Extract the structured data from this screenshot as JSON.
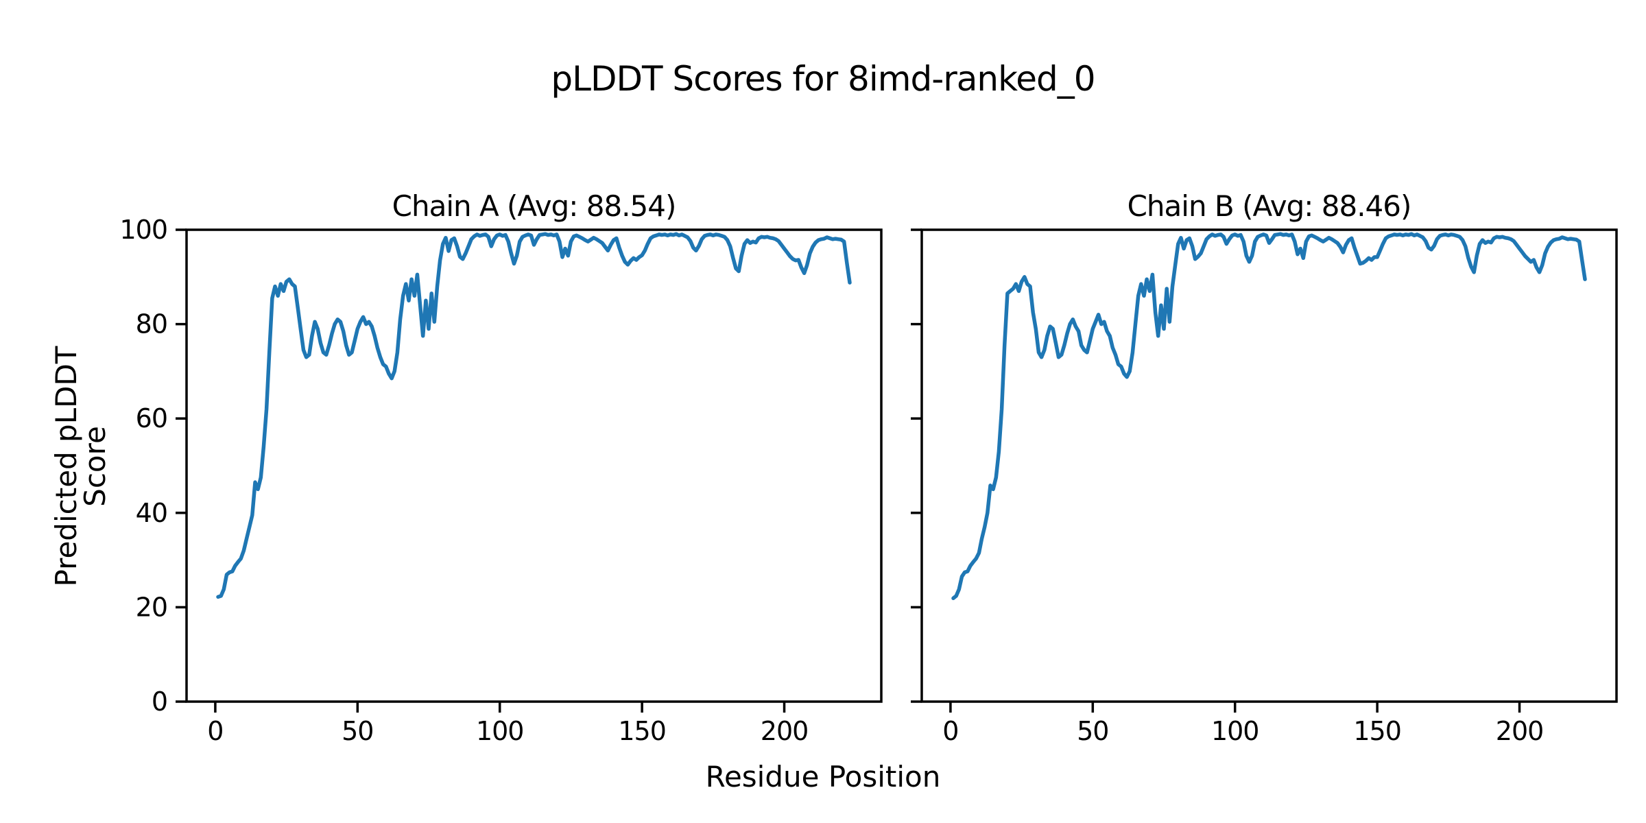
{
  "figure": {
    "suptitle": "pLDDT Scores for 8imd-ranked_0",
    "xlabel": "Residue Position",
    "ylabel": "Predicted pLDDT Score",
    "line_color": "#1f77b4",
    "axis_color": "#000000",
    "background": "#ffffff"
  },
  "chart_data": [
    {
      "type": "line",
      "title": "Chain A (Avg: 88.54)",
      "series_name": "Chain A pLDDT",
      "avg": 88.54,
      "x_start": 1,
      "xlabel": "Residue Position",
      "ylabel": "Predicted pLDDT Score",
      "xlim": [
        -10.1,
        234.1
      ],
      "ylim": [
        0,
        100
      ],
      "xticks": [
        0,
        50,
        100,
        150,
        200
      ],
      "yticks": [
        0,
        20,
        40,
        60,
        80,
        100
      ],
      "show_ytick_labels": true,
      "grid": false,
      "values": [
        22.2,
        22.4,
        23.8,
        26.9,
        27.4,
        27.6,
        28.8,
        29.6,
        30.3,
        32.0,
        34.5,
        37.0,
        39.5,
        46.5,
        45.0,
        47.5,
        54.0,
        62.0,
        74.0,
        85.5,
        88.0,
        86.0,
        88.5,
        87.0,
        89.0,
        89.5,
        88.5,
        88.0,
        83.5,
        79.0,
        74.5,
        73.0,
        73.5,
        77.5,
        80.5,
        79.0,
        76.0,
        74.0,
        73.5,
        75.5,
        78.0,
        80.0,
        81.0,
        80.5,
        78.5,
        75.5,
        73.5,
        74.0,
        76.5,
        79.0,
        80.5,
        81.5,
        80.0,
        80.5,
        79.5,
        77.5,
        75.0,
        73.0,
        71.5,
        71.0,
        69.5,
        68.5,
        70.0,
        74.0,
        81.0,
        86.0,
        88.5,
        85.0,
        89.5,
        86.0,
        90.5,
        84.0,
        77.5,
        85.0,
        79.0,
        86.5,
        80.5,
        88.0,
        93.5,
        97.0,
        98.3,
        95.5,
        97.8,
        98.2,
        96.5,
        94.3,
        93.8,
        95.0,
        96.5,
        98.0,
        98.6,
        99.0,
        98.7,
        98.9,
        99.0,
        98.5,
        96.5,
        98.0,
        98.8,
        99.0,
        98.7,
        98.9,
        97.5,
        95.0,
        92.8,
        94.5,
        97.5,
        98.5,
        98.8,
        99.0,
        98.8,
        96.8,
        98.0,
        98.9,
        99.0,
        99.1,
        98.9,
        99.0,
        98.8,
        99.0,
        97.5,
        94.2,
        96.0,
        94.5,
        97.5,
        98.6,
        98.8,
        98.5,
        98.2,
        97.8,
        97.5,
        97.9,
        98.3,
        98.0,
        97.6,
        97.2,
        96.4,
        95.6,
        96.8,
        97.8,
        98.2,
        96.2,
        94.5,
        93.2,
        92.6,
        93.4,
        94.0,
        93.6,
        94.2,
        94.6,
        95.6,
        97.0,
        98.2,
        98.6,
        98.8,
        99.0,
        98.9,
        99.0,
        98.8,
        99.0,
        98.9,
        99.1,
        98.8,
        99.0,
        98.7,
        98.4,
        97.6,
        96.2,
        95.6,
        96.6,
        98.0,
        98.7,
        98.9,
        99.0,
        98.8,
        99.0,
        98.9,
        98.7,
        98.5,
        97.8,
        96.5,
        94.0,
        91.8,
        91.2,
        94.5,
        97.0,
        97.8,
        97.2,
        97.5,
        97.3,
        98.2,
        98.5,
        98.4,
        98.5,
        98.3,
        98.2,
        98.0,
        97.6,
        96.8,
        96.0,
        95.2,
        94.4,
        93.8,
        93.5,
        93.6,
        92.0,
        90.8,
        92.5,
        95.0,
        96.4,
        97.3,
        97.8,
        98.0,
        98.1,
        98.4,
        98.2,
        98.0,
        98.1,
        98.0,
        97.9,
        97.5,
        93.0,
        88.8
      ]
    },
    {
      "type": "line",
      "title": "Chain B (Avg: 88.46)",
      "series_name": "Chain B pLDDT",
      "avg": 88.46,
      "x_start": 1,
      "xlabel": "Residue Position",
      "ylabel": "Predicted pLDDT Score",
      "xlim": [
        -10.1,
        234.1
      ],
      "ylim": [
        0,
        100
      ],
      "xticks": [
        0,
        50,
        100,
        150,
        200
      ],
      "yticks": [
        0,
        20,
        40,
        60,
        80,
        100
      ],
      "show_ytick_labels": false,
      "grid": false,
      "values": [
        21.9,
        22.4,
        23.8,
        26.5,
        27.4,
        27.6,
        28.8,
        29.6,
        30.3,
        31.5,
        34.5,
        37.0,
        40.0,
        45.8,
        45.0,
        47.5,
        53.0,
        62.0,
        75.5,
        86.5,
        87.0,
        87.5,
        88.5,
        87.0,
        89.0,
        90.0,
        88.5,
        88.0,
        82.5,
        79.0,
        74.0,
        73.0,
        74.5,
        77.5,
        79.5,
        79.0,
        76.0,
        73.0,
        73.5,
        75.5,
        78.0,
        80.0,
        81.0,
        79.5,
        78.5,
        75.5,
        74.5,
        74.0,
        76.5,
        79.0,
        80.5,
        82.0,
        80.0,
        80.5,
        78.5,
        77.5,
        75.0,
        73.5,
        71.5,
        71.0,
        69.5,
        68.8,
        70.0,
        74.0,
        80.0,
        86.0,
        88.5,
        86.0,
        89.5,
        87.0,
        90.5,
        82.5,
        77.5,
        84.0,
        79.0,
        87.5,
        80.5,
        88.0,
        92.5,
        97.0,
        98.3,
        96.0,
        97.8,
        98.2,
        96.5,
        93.8,
        94.3,
        95.0,
        96.5,
        98.0,
        98.6,
        99.0,
        98.7,
        98.9,
        99.0,
        98.5,
        97.0,
        98.0,
        98.8,
        99.0,
        98.7,
        98.9,
        97.5,
        94.5,
        93.2,
        94.5,
        97.5,
        98.5,
        98.8,
        99.0,
        98.8,
        97.2,
        98.0,
        98.9,
        99.0,
        99.1,
        98.9,
        99.0,
        98.8,
        99.0,
        97.5,
        94.8,
        96.0,
        94.0,
        97.5,
        98.6,
        98.8,
        98.5,
        98.2,
        97.8,
        97.5,
        97.9,
        98.3,
        98.0,
        97.6,
        97.2,
        96.4,
        95.2,
        96.8,
        97.8,
        98.2,
        96.2,
        94.5,
        92.8,
        93.0,
        93.4,
        94.0,
        93.6,
        94.2,
        94.2,
        95.6,
        97.0,
        98.2,
        98.6,
        98.8,
        99.0,
        98.9,
        99.0,
        98.8,
        99.0,
        98.9,
        99.1,
        98.8,
        99.0,
        98.7,
        98.4,
        97.6,
        96.2,
        95.8,
        96.6,
        98.0,
        98.7,
        98.9,
        99.0,
        98.8,
        99.0,
        98.9,
        98.7,
        98.5,
        97.8,
        96.5,
        94.0,
        92.2,
        91.0,
        94.5,
        97.0,
        97.8,
        97.2,
        97.5,
        97.3,
        98.2,
        98.5,
        98.4,
        98.5,
        98.3,
        98.2,
        98.0,
        97.6,
        96.8,
        96.0,
        95.2,
        94.4,
        93.8,
        93.2,
        93.6,
        92.0,
        91.0,
        92.5,
        95.0,
        96.4,
        97.3,
        97.8,
        98.0,
        98.1,
        98.4,
        98.2,
        98.0,
        98.1,
        98.0,
        97.9,
        97.5,
        93.5,
        89.5
      ]
    }
  ]
}
